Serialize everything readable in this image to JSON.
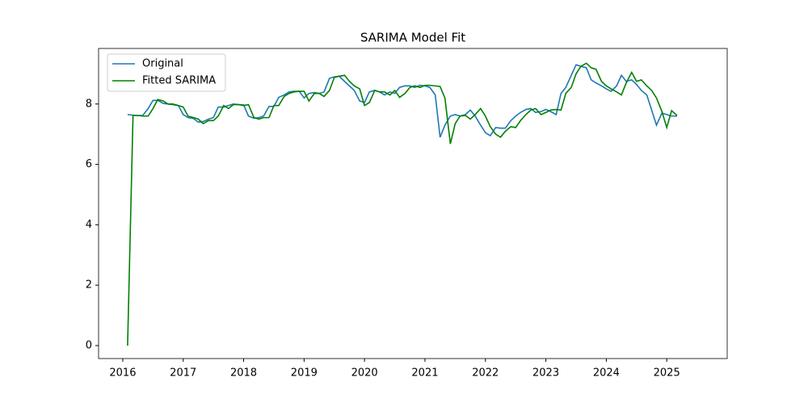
{
  "chart_data": {
    "type": "line",
    "title": "SARIMA Model Fit",
    "x": [
      2016.08,
      2016.17,
      2016.25,
      2016.33,
      2016.42,
      2016.5,
      2016.58,
      2016.67,
      2016.75,
      2016.83,
      2016.92,
      2017.0,
      2017.08,
      2017.17,
      2017.25,
      2017.33,
      2017.42,
      2017.5,
      2017.58,
      2017.67,
      2017.75,
      2017.83,
      2017.92,
      2018.0,
      2018.08,
      2018.17,
      2018.25,
      2018.33,
      2018.42,
      2018.5,
      2018.58,
      2018.67,
      2018.75,
      2018.83,
      2018.92,
      2019.0,
      2019.08,
      2019.17,
      2019.25,
      2019.33,
      2019.42,
      2019.5,
      2019.58,
      2019.67,
      2019.75,
      2019.83,
      2019.92,
      2020.0,
      2020.08,
      2020.17,
      2020.25,
      2020.33,
      2020.42,
      2020.5,
      2020.58,
      2020.67,
      2020.75,
      2020.83,
      2020.92,
      2021.0,
      2021.08,
      2021.17,
      2021.25,
      2021.33,
      2021.42,
      2021.5,
      2021.58,
      2021.67,
      2021.75,
      2021.83,
      2021.92,
      2022.0,
      2022.08,
      2022.17,
      2022.25,
      2022.33,
      2022.42,
      2022.5,
      2022.58,
      2022.67,
      2022.75,
      2022.83,
      2022.92,
      2023.0,
      2023.08,
      2023.17,
      2023.25,
      2023.33,
      2023.42,
      2023.5,
      2023.58,
      2023.67,
      2023.75,
      2023.83,
      2023.92,
      2024.0,
      2024.08,
      2024.17,
      2024.25,
      2024.33,
      2024.42,
      2024.5,
      2024.58,
      2024.67,
      2024.75,
      2024.83,
      2024.92,
      2025.0,
      2025.08,
      2025.17
    ],
    "series": [
      {
        "name": "Original",
        "color": "#1f77b4",
        "values": [
          7.65,
          7.63,
          7.62,
          7.62,
          7.85,
          8.12,
          8.12,
          8.02,
          8.0,
          7.98,
          7.95,
          7.65,
          7.55,
          7.52,
          7.4,
          7.42,
          7.5,
          7.55,
          7.9,
          7.9,
          7.95,
          8.0,
          7.98,
          7.97,
          7.6,
          7.53,
          7.55,
          7.6,
          7.92,
          7.92,
          8.22,
          8.3,
          8.4,
          8.42,
          8.42,
          8.2,
          8.35,
          8.38,
          8.35,
          8.4,
          8.85,
          8.9,
          8.92,
          8.75,
          8.6,
          8.45,
          8.1,
          8.05,
          8.4,
          8.45,
          8.4,
          8.3,
          8.4,
          8.35,
          8.55,
          8.6,
          8.6,
          8.55,
          8.62,
          8.6,
          8.55,
          8.3,
          6.9,
          7.3,
          7.6,
          7.65,
          7.6,
          7.65,
          7.8,
          7.6,
          7.3,
          7.05,
          6.95,
          7.22,
          7.2,
          7.2,
          7.45,
          7.6,
          7.72,
          7.82,
          7.85,
          7.72,
          7.75,
          7.82,
          7.75,
          7.65,
          8.35,
          8.55,
          8.95,
          9.3,
          9.25,
          9.2,
          8.8,
          8.7,
          8.6,
          8.5,
          8.42,
          8.6,
          8.95,
          8.75,
          8.8,
          8.65,
          8.45,
          8.3,
          7.8,
          7.3,
          7.7,
          7.65,
          7.6,
          7.6
        ]
      },
      {
        "name": "Fitted SARIMA",
        "color": "#008000",
        "values": [
          0,
          7.62,
          7.62,
          7.6,
          7.6,
          7.85,
          8.15,
          8.1,
          8.0,
          8.0,
          7.95,
          7.9,
          7.6,
          7.55,
          7.5,
          7.35,
          7.45,
          7.45,
          7.6,
          7.95,
          7.85,
          7.98,
          7.98,
          7.95,
          7.98,
          7.55,
          7.5,
          7.55,
          7.55,
          7.95,
          7.95,
          8.25,
          8.35,
          8.4,
          8.42,
          8.42,
          8.1,
          8.35,
          8.35,
          8.25,
          8.45,
          8.88,
          8.92,
          8.95,
          8.75,
          8.6,
          8.5,
          7.95,
          8.05,
          8.45,
          8.4,
          8.4,
          8.3,
          8.45,
          8.22,
          8.35,
          8.55,
          8.6,
          8.55,
          8.62,
          8.62,
          8.6,
          8.58,
          8.2,
          6.68,
          7.35,
          7.6,
          7.62,
          7.5,
          7.65,
          7.85,
          7.6,
          7.25,
          7.0,
          6.9,
          7.1,
          7.25,
          7.22,
          7.45,
          7.65,
          7.8,
          7.85,
          7.65,
          7.72,
          7.8,
          7.82,
          7.8,
          8.35,
          8.55,
          9.0,
          9.25,
          9.35,
          9.2,
          9.15,
          8.75,
          8.6,
          8.5,
          8.4,
          8.3,
          8.7,
          9.05,
          8.75,
          8.8,
          8.6,
          8.45,
          8.2,
          7.75,
          7.22,
          7.78,
          7.62
        ]
      }
    ],
    "xlim": [
      2015.6,
      2026.0
    ],
    "ylim": [
      -0.43,
      9.84
    ],
    "xticks": [
      2016,
      2017,
      2018,
      2019,
      2020,
      2021,
      2022,
      2023,
      2024,
      2025
    ],
    "yticks": [
      0,
      2,
      4,
      6,
      8
    ],
    "legend": "upper left"
  }
}
